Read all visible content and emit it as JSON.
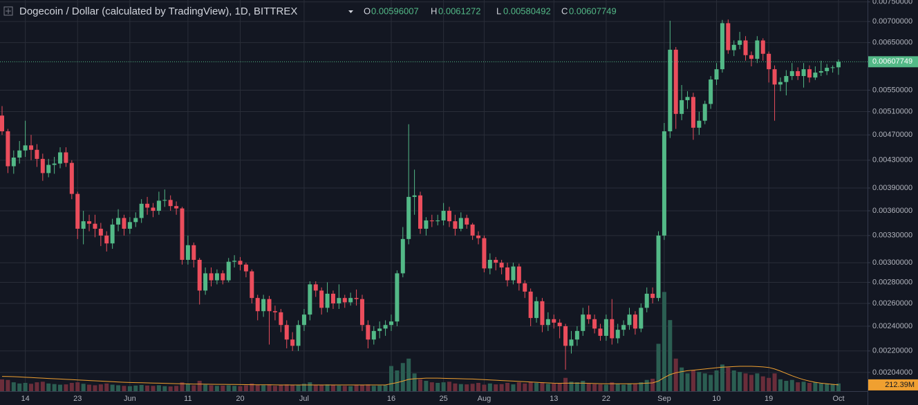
{
  "chart_data": {
    "type": "candlestick",
    "title": "Dogecoin / Dollar (calculated by TradingView), 1D, BITTREX",
    "legend_labels": [
      "O",
      "H",
      "L",
      "C"
    ],
    "log_scale": true,
    "grid": true,
    "up_color": "#53b987",
    "down_color": "#eb4d5c",
    "volume_up_color": "#2b5e52",
    "volume_down_color": "#6a2d3a",
    "volume_ma_color": "#f0a030",
    "ylim": [
      0.00191,
      0.00755
    ],
    "yticks": [
      {
        "value": 0.0075,
        "label": "0.00750000"
      },
      {
        "value": 0.007,
        "label": "0.00700000"
      },
      {
        "value": 0.0065,
        "label": "0.00650000"
      },
      {
        "value": 0.0055,
        "label": "0.00550000"
      },
      {
        "value": 0.0051,
        "label": "0.00510000"
      },
      {
        "value": 0.0047,
        "label": "0.00470000"
      },
      {
        "value": 0.0043,
        "label": "0.00430000"
      },
      {
        "value": 0.0039,
        "label": "0.00390000"
      },
      {
        "value": 0.0036,
        "label": "0.00360000"
      },
      {
        "value": 0.0033,
        "label": "0.00330000"
      },
      {
        "value": 0.003,
        "label": "0.00300000"
      },
      {
        "value": 0.0028,
        "label": "0.00280000"
      },
      {
        "value": 0.0026,
        "label": "0.00260000"
      },
      {
        "value": 0.0024,
        "label": "0.00240000"
      },
      {
        "value": 0.0022,
        "label": "0.00220000"
      },
      {
        "value": 0.00204,
        "label": "0.00204000"
      }
    ],
    "categories": [
      null,
      null,
      null,
      null,
      "14",
      null,
      null,
      null,
      null,
      null,
      null,
      null,
      null,
      "23",
      null,
      null,
      null,
      null,
      null,
      null,
      null,
      null,
      "Jun",
      null,
      null,
      null,
      null,
      null,
      null,
      null,
      null,
      null,
      "11",
      null,
      null,
      null,
      null,
      null,
      null,
      null,
      null,
      "20",
      null,
      null,
      null,
      null,
      null,
      null,
      null,
      null,
      null,
      null,
      "Jul",
      null,
      null,
      null,
      null,
      null,
      null,
      null,
      null,
      null,
      null,
      null,
      null,
      null,
      null,
      "16",
      null,
      null,
      null,
      null,
      null,
      null,
      null,
      null,
      "25",
      null,
      null,
      null,
      null,
      null,
      null,
      "Aug",
      null,
      null,
      null,
      null,
      null,
      null,
      null,
      null,
      null,
      null,
      null,
      "13",
      null,
      null,
      null,
      null,
      null,
      null,
      null,
      null,
      "22",
      null,
      null,
      null,
      null,
      null,
      null,
      null,
      null,
      null,
      "Sep",
      null,
      null,
      null,
      null,
      null,
      null,
      null,
      null,
      "10",
      null,
      null,
      null,
      null,
      null,
      null,
      null,
      null,
      "19",
      null,
      null,
      null,
      null,
      null,
      null,
      null,
      null,
      null,
      null,
      null,
      "Oct"
    ],
    "candles": [
      [
        0.00503,
        0.0052,
        0.0047,
        0.00476
      ],
      [
        0.00476,
        0.0048,
        0.00411,
        0.00421
      ],
      [
        0.00421,
        0.00445,
        0.0041,
        0.00434
      ],
      [
        0.00434,
        0.0046,
        0.00425,
        0.00445
      ],
      [
        0.00445,
        0.00494,
        0.00435,
        0.00453
      ],
      [
        0.00453,
        0.0047,
        0.0043,
        0.00446
      ],
      [
        0.00446,
        0.00455,
        0.0042,
        0.00432
      ],
      [
        0.00432,
        0.0044,
        0.004,
        0.00411
      ],
      [
        0.00411,
        0.00432,
        0.00405,
        0.00423
      ],
      [
        0.00423,
        0.00435,
        0.0041,
        0.00425
      ],
      [
        0.00425,
        0.0045,
        0.00418,
        0.00442
      ],
      [
        0.00442,
        0.0045,
        0.0042,
        0.00426
      ],
      [
        0.00426,
        0.0043,
        0.00375,
        0.00382
      ],
      [
        0.00382,
        0.00385,
        0.00326,
        0.00338
      ],
      [
        0.00338,
        0.0036,
        0.0032,
        0.00347
      ],
      [
        0.00347,
        0.00355,
        0.00335,
        0.00344
      ],
      [
        0.00344,
        0.00355,
        0.00328,
        0.00338
      ],
      [
        0.00338,
        0.00345,
        0.00318,
        0.0033
      ],
      [
        0.0033,
        0.00335,
        0.00312,
        0.00321
      ],
      [
        0.00321,
        0.0035,
        0.00315,
        0.00343
      ],
      [
        0.00343,
        0.00362,
        0.00335,
        0.00351
      ],
      [
        0.00351,
        0.00355,
        0.0033,
        0.00338
      ],
      [
        0.00338,
        0.00352,
        0.00332,
        0.00346
      ],
      [
        0.00346,
        0.00358,
        0.0034,
        0.00351
      ],
      [
        0.00351,
        0.00375,
        0.00345,
        0.00369
      ],
      [
        0.00369,
        0.00378,
        0.00355,
        0.00364
      ],
      [
        0.00364,
        0.0037,
        0.00352,
        0.0036
      ],
      [
        0.0036,
        0.00385,
        0.00355,
        0.00373
      ],
      [
        0.00373,
        0.00388,
        0.00365,
        0.00374
      ],
      [
        0.00374,
        0.0038,
        0.0036,
        0.00366
      ],
      [
        0.00366,
        0.00372,
        0.00355,
        0.00363
      ],
      [
        0.00363,
        0.00365,
        0.00298,
        0.00303
      ],
      [
        0.00303,
        0.0033,
        0.00298,
        0.00319
      ],
      [
        0.00319,
        0.00322,
        0.00295,
        0.00303
      ],
      [
        0.00303,
        0.00305,
        0.00259,
        0.00272
      ],
      [
        0.00272,
        0.00295,
        0.00268,
        0.00289
      ],
      [
        0.00289,
        0.00295,
        0.00276,
        0.00282
      ],
      [
        0.00282,
        0.00293,
        0.00278,
        0.00289
      ],
      [
        0.00289,
        0.00292,
        0.00278,
        0.00282
      ],
      [
        0.00282,
        0.00305,
        0.0028,
        0.00301
      ],
      [
        0.00301,
        0.00308,
        0.00295,
        0.00302
      ],
      [
        0.00302,
        0.00306,
        0.00292,
        0.00298
      ],
      [
        0.00298,
        0.003,
        0.00285,
        0.00291
      ],
      [
        0.00291,
        0.00293,
        0.0026,
        0.00265
      ],
      [
        0.00265,
        0.00268,
        0.00245,
        0.00253
      ],
      [
        0.00253,
        0.00268,
        0.00248,
        0.00264
      ],
      [
        0.00264,
        0.00267,
        0.00225,
        0.00253
      ],
      [
        0.00253,
        0.00258,
        0.00245,
        0.00252
      ],
      [
        0.00252,
        0.00255,
        0.00235,
        0.00241
      ],
      [
        0.00241,
        0.00245,
        0.00222,
        0.00229
      ],
      [
        0.00229,
        0.00235,
        0.0022,
        0.00224
      ],
      [
        0.00224,
        0.00245,
        0.0022,
        0.00241
      ],
      [
        0.00241,
        0.00255,
        0.00236,
        0.0025
      ],
      [
        0.0025,
        0.00281,
        0.00245,
        0.00278
      ],
      [
        0.00278,
        0.00281,
        0.00266,
        0.00272
      ],
      [
        0.00272,
        0.00275,
        0.0025,
        0.00256
      ],
      [
        0.00256,
        0.0028,
        0.00252,
        0.00269
      ],
      [
        0.00269,
        0.00272,
        0.00255,
        0.0026
      ],
      [
        0.0026,
        0.00278,
        0.00255,
        0.00265
      ],
      [
        0.00265,
        0.00268,
        0.00256,
        0.00261
      ],
      [
        0.00261,
        0.0027,
        0.00258,
        0.00265
      ],
      [
        0.00265,
        0.00273,
        0.00258,
        0.00264
      ],
      [
        0.00264,
        0.00268,
        0.00236,
        0.00241
      ],
      [
        0.00241,
        0.00245,
        0.00222,
        0.00229
      ],
      [
        0.00229,
        0.0024,
        0.00225,
        0.00236
      ],
      [
        0.00236,
        0.00244,
        0.0023,
        0.00238
      ],
      [
        0.00238,
        0.00245,
        0.00232,
        0.00241
      ],
      [
        0.00241,
        0.0025,
        0.00236,
        0.00244
      ],
      [
        0.00244,
        0.00292,
        0.0024,
        0.00289
      ],
      [
        0.00289,
        0.0034,
        0.00285,
        0.00326
      ],
      [
        0.00326,
        0.00488,
        0.0032,
        0.00378
      ],
      [
        0.00378,
        0.00416,
        0.00355,
        0.0038
      ],
      [
        0.0038,
        0.00385,
        0.00332,
        0.00338
      ],
      [
        0.00338,
        0.00352,
        0.0033,
        0.00348
      ],
      [
        0.00348,
        0.00355,
        0.0034,
        0.00347
      ],
      [
        0.00347,
        0.00355,
        0.00342,
        0.00348
      ],
      [
        0.00348,
        0.0037,
        0.00342,
        0.0036
      ],
      [
        0.0036,
        0.00365,
        0.0034,
        0.00347
      ],
      [
        0.00347,
        0.00355,
        0.0033,
        0.00338
      ],
      [
        0.00338,
        0.00358,
        0.00335,
        0.00351
      ],
      [
        0.00351,
        0.00355,
        0.00338,
        0.00343
      ],
      [
        0.00343,
        0.00345,
        0.00325,
        0.0033
      ],
      [
        0.0033,
        0.00335,
        0.0032,
        0.00327
      ],
      [
        0.00327,
        0.0033,
        0.0029,
        0.00294
      ],
      [
        0.00294,
        0.0031,
        0.00288,
        0.00303
      ],
      [
        0.00303,
        0.00306,
        0.00292,
        0.003
      ],
      [
        0.003,
        0.00303,
        0.00288,
        0.00295
      ],
      [
        0.00295,
        0.003,
        0.00276,
        0.00282
      ],
      [
        0.00282,
        0.003,
        0.00278,
        0.00296
      ],
      [
        0.00296,
        0.00299,
        0.00272,
        0.00279
      ],
      [
        0.00279,
        0.00282,
        0.00265,
        0.00271
      ],
      [
        0.00271,
        0.00274,
        0.0024,
        0.00247
      ],
      [
        0.00247,
        0.00266,
        0.00243,
        0.00262
      ],
      [
        0.00262,
        0.00265,
        0.00235,
        0.00241
      ],
      [
        0.00241,
        0.00252,
        0.00236,
        0.00246
      ],
      [
        0.00246,
        0.0025,
        0.00238,
        0.00243
      ],
      [
        0.00243,
        0.00246,
        0.0023,
        0.0024
      ],
      [
        0.0024,
        0.00242,
        0.00206,
        0.00224
      ],
      [
        0.00224,
        0.00236,
        0.00218,
        0.00229
      ],
      [
        0.00229,
        0.0024,
        0.00224,
        0.00236
      ],
      [
        0.00236,
        0.00256,
        0.00232,
        0.0025
      ],
      [
        0.0025,
        0.00258,
        0.00242,
        0.00246
      ],
      [
        0.00246,
        0.0025,
        0.00234,
        0.00238
      ],
      [
        0.00238,
        0.00242,
        0.00228,
        0.00232
      ],
      [
        0.00232,
        0.0025,
        0.00228,
        0.00246
      ],
      [
        0.00246,
        0.00264,
        0.00225,
        0.0023
      ],
      [
        0.0023,
        0.00242,
        0.00226,
        0.00237
      ],
      [
        0.00237,
        0.00245,
        0.00232,
        0.00241
      ],
      [
        0.00241,
        0.00256,
        0.00237,
        0.0025
      ],
      [
        0.0025,
        0.00253,
        0.00233,
        0.00238
      ],
      [
        0.00238,
        0.0026,
        0.00235,
        0.00256
      ],
      [
        0.00256,
        0.00275,
        0.00252,
        0.00269
      ],
      [
        0.00269,
        0.00275,
        0.0026,
        0.00265
      ],
      [
        0.00265,
        0.00335,
        0.00262,
        0.0033
      ],
      [
        0.0033,
        0.0049,
        0.00325,
        0.00476
      ],
      [
        0.00476,
        0.00702,
        0.00465,
        0.00634
      ],
      [
        0.00634,
        0.0064,
        0.0048,
        0.00506
      ],
      [
        0.00506,
        0.0056,
        0.00495,
        0.00531
      ],
      [
        0.00531,
        0.00548,
        0.00515,
        0.00537
      ],
      [
        0.00537,
        0.00545,
        0.00462,
        0.00482
      ],
      [
        0.00482,
        0.0051,
        0.0047,
        0.00494
      ],
      [
        0.00494,
        0.0053,
        0.00488,
        0.00524
      ],
      [
        0.00524,
        0.00578,
        0.00515,
        0.00571
      ],
      [
        0.00571,
        0.00605,
        0.0056,
        0.00592
      ],
      [
        0.00592,
        0.00704,
        0.00585,
        0.00696
      ],
      [
        0.00696,
        0.00705,
        0.00625,
        0.00633
      ],
      [
        0.00633,
        0.00655,
        0.0062,
        0.00645
      ],
      [
        0.00645,
        0.00675,
        0.00635,
        0.00655
      ],
      [
        0.00655,
        0.00665,
        0.0061,
        0.00622
      ],
      [
        0.00622,
        0.0063,
        0.00598,
        0.00614
      ],
      [
        0.00614,
        0.00665,
        0.00605,
        0.00655
      ],
      [
        0.00655,
        0.0066,
        0.0061,
        0.00625
      ],
      [
        0.00625,
        0.0063,
        0.00565,
        0.00592
      ],
      [
        0.00592,
        0.006,
        0.00494,
        0.00561
      ],
      [
        0.00561,
        0.00575,
        0.00548,
        0.00566
      ],
      [
        0.00566,
        0.0059,
        0.0054,
        0.00578
      ],
      [
        0.00578,
        0.00605,
        0.0057,
        0.00588
      ],
      [
        0.00588,
        0.00596,
        0.0057,
        0.00578
      ],
      [
        0.00578,
        0.00605,
        0.00555,
        0.00592
      ],
      [
        0.00592,
        0.006,
        0.00565,
        0.00575
      ],
      [
        0.00575,
        0.00598,
        0.0057,
        0.00585
      ],
      [
        0.00585,
        0.0061,
        0.00578,
        0.00588
      ],
      [
        0.00588,
        0.00603,
        0.0058,
        0.00595
      ],
      [
        0.00595,
        0.006,
        0.00585,
        0.00596
      ],
      [
        0.00596007,
        0.0061272,
        0.00580492,
        0.00607749
      ]
    ],
    "volume_ylim": [
      0,
      3500
    ],
    "volume": [
      400,
      380,
      300,
      260,
      280,
      250,
      300,
      320,
      260,
      240,
      220,
      230,
      280,
      300,
      250,
      220,
      200,
      230,
      260,
      220,
      200,
      180,
      170,
      190,
      210,
      190,
      180,
      200,
      170,
      160,
      180,
      300,
      250,
      200,
      350,
      220,
      200,
      180,
      190,
      200,
      180,
      170,
      200,
      260,
      220,
      200,
      230,
      180,
      210,
      230,
      200,
      220,
      250,
      300,
      220,
      200,
      230,
      200,
      190,
      180,
      170,
      200,
      220,
      230,
      180,
      190,
      200,
      850,
      700,
      950,
      1100,
      600,
      400,
      350,
      300,
      280,
      300,
      320,
      260,
      240,
      230,
      250,
      280,
      220,
      260,
      230,
      240,
      280,
      230,
      300,
      260,
      320,
      280,
      300,
      250,
      260,
      280,
      450,
      320,
      300,
      350,
      260,
      240,
      230,
      220,
      300,
      240,
      220,
      260,
      240,
      300,
      380,
      420,
      1600,
      3350,
      2400,
      1100,
      800,
      600,
      700,
      650,
      600,
      550,
      700,
      900,
      800,
      700,
      650,
      600,
      550,
      600,
      500,
      450,
      600,
      400,
      350,
      380,
      300,
      320,
      280,
      300,
      260,
      250,
      240,
      260
    ],
    "volume_ma": [
      500,
      495,
      490,
      480,
      470,
      460,
      450,
      440,
      430,
      420,
      410,
      400,
      390,
      380,
      370,
      360,
      350,
      340,
      330,
      320,
      310,
      300,
      295,
      290,
      285,
      280,
      275,
      270,
      265,
      260,
      255,
      250,
      245,
      240,
      238,
      236,
      234,
      232,
      230,
      228,
      226,
      224,
      222,
      220,
      218,
      216,
      214,
      212,
      210,
      210,
      210,
      210,
      210,
      210,
      210,
      210,
      210,
      210,
      210,
      210,
      210,
      210,
      210,
      210,
      210,
      210,
      210,
      250,
      290,
      340,
      400,
      420,
      430,
      440,
      440,
      440,
      435,
      430,
      425,
      420,
      415,
      410,
      400,
      390,
      380,
      370,
      360,
      350,
      340,
      330,
      320,
      310,
      300,
      290,
      280,
      270,
      265,
      270,
      270,
      270,
      270,
      265,
      260,
      255,
      250,
      250,
      250,
      250,
      250,
      255,
      260,
      270,
      280,
      340,
      460,
      560,
      620,
      660,
      690,
      710,
      730,
      750,
      770,
      790,
      810,
      820,
      830,
      840,
      840,
      840,
      830,
      820,
      800,
      750,
      680,
      600,
      520,
      450,
      390,
      340,
      300,
      270,
      250,
      230,
      212.39
    ],
    "volume_ma_label": "212.39M"
  }
}
